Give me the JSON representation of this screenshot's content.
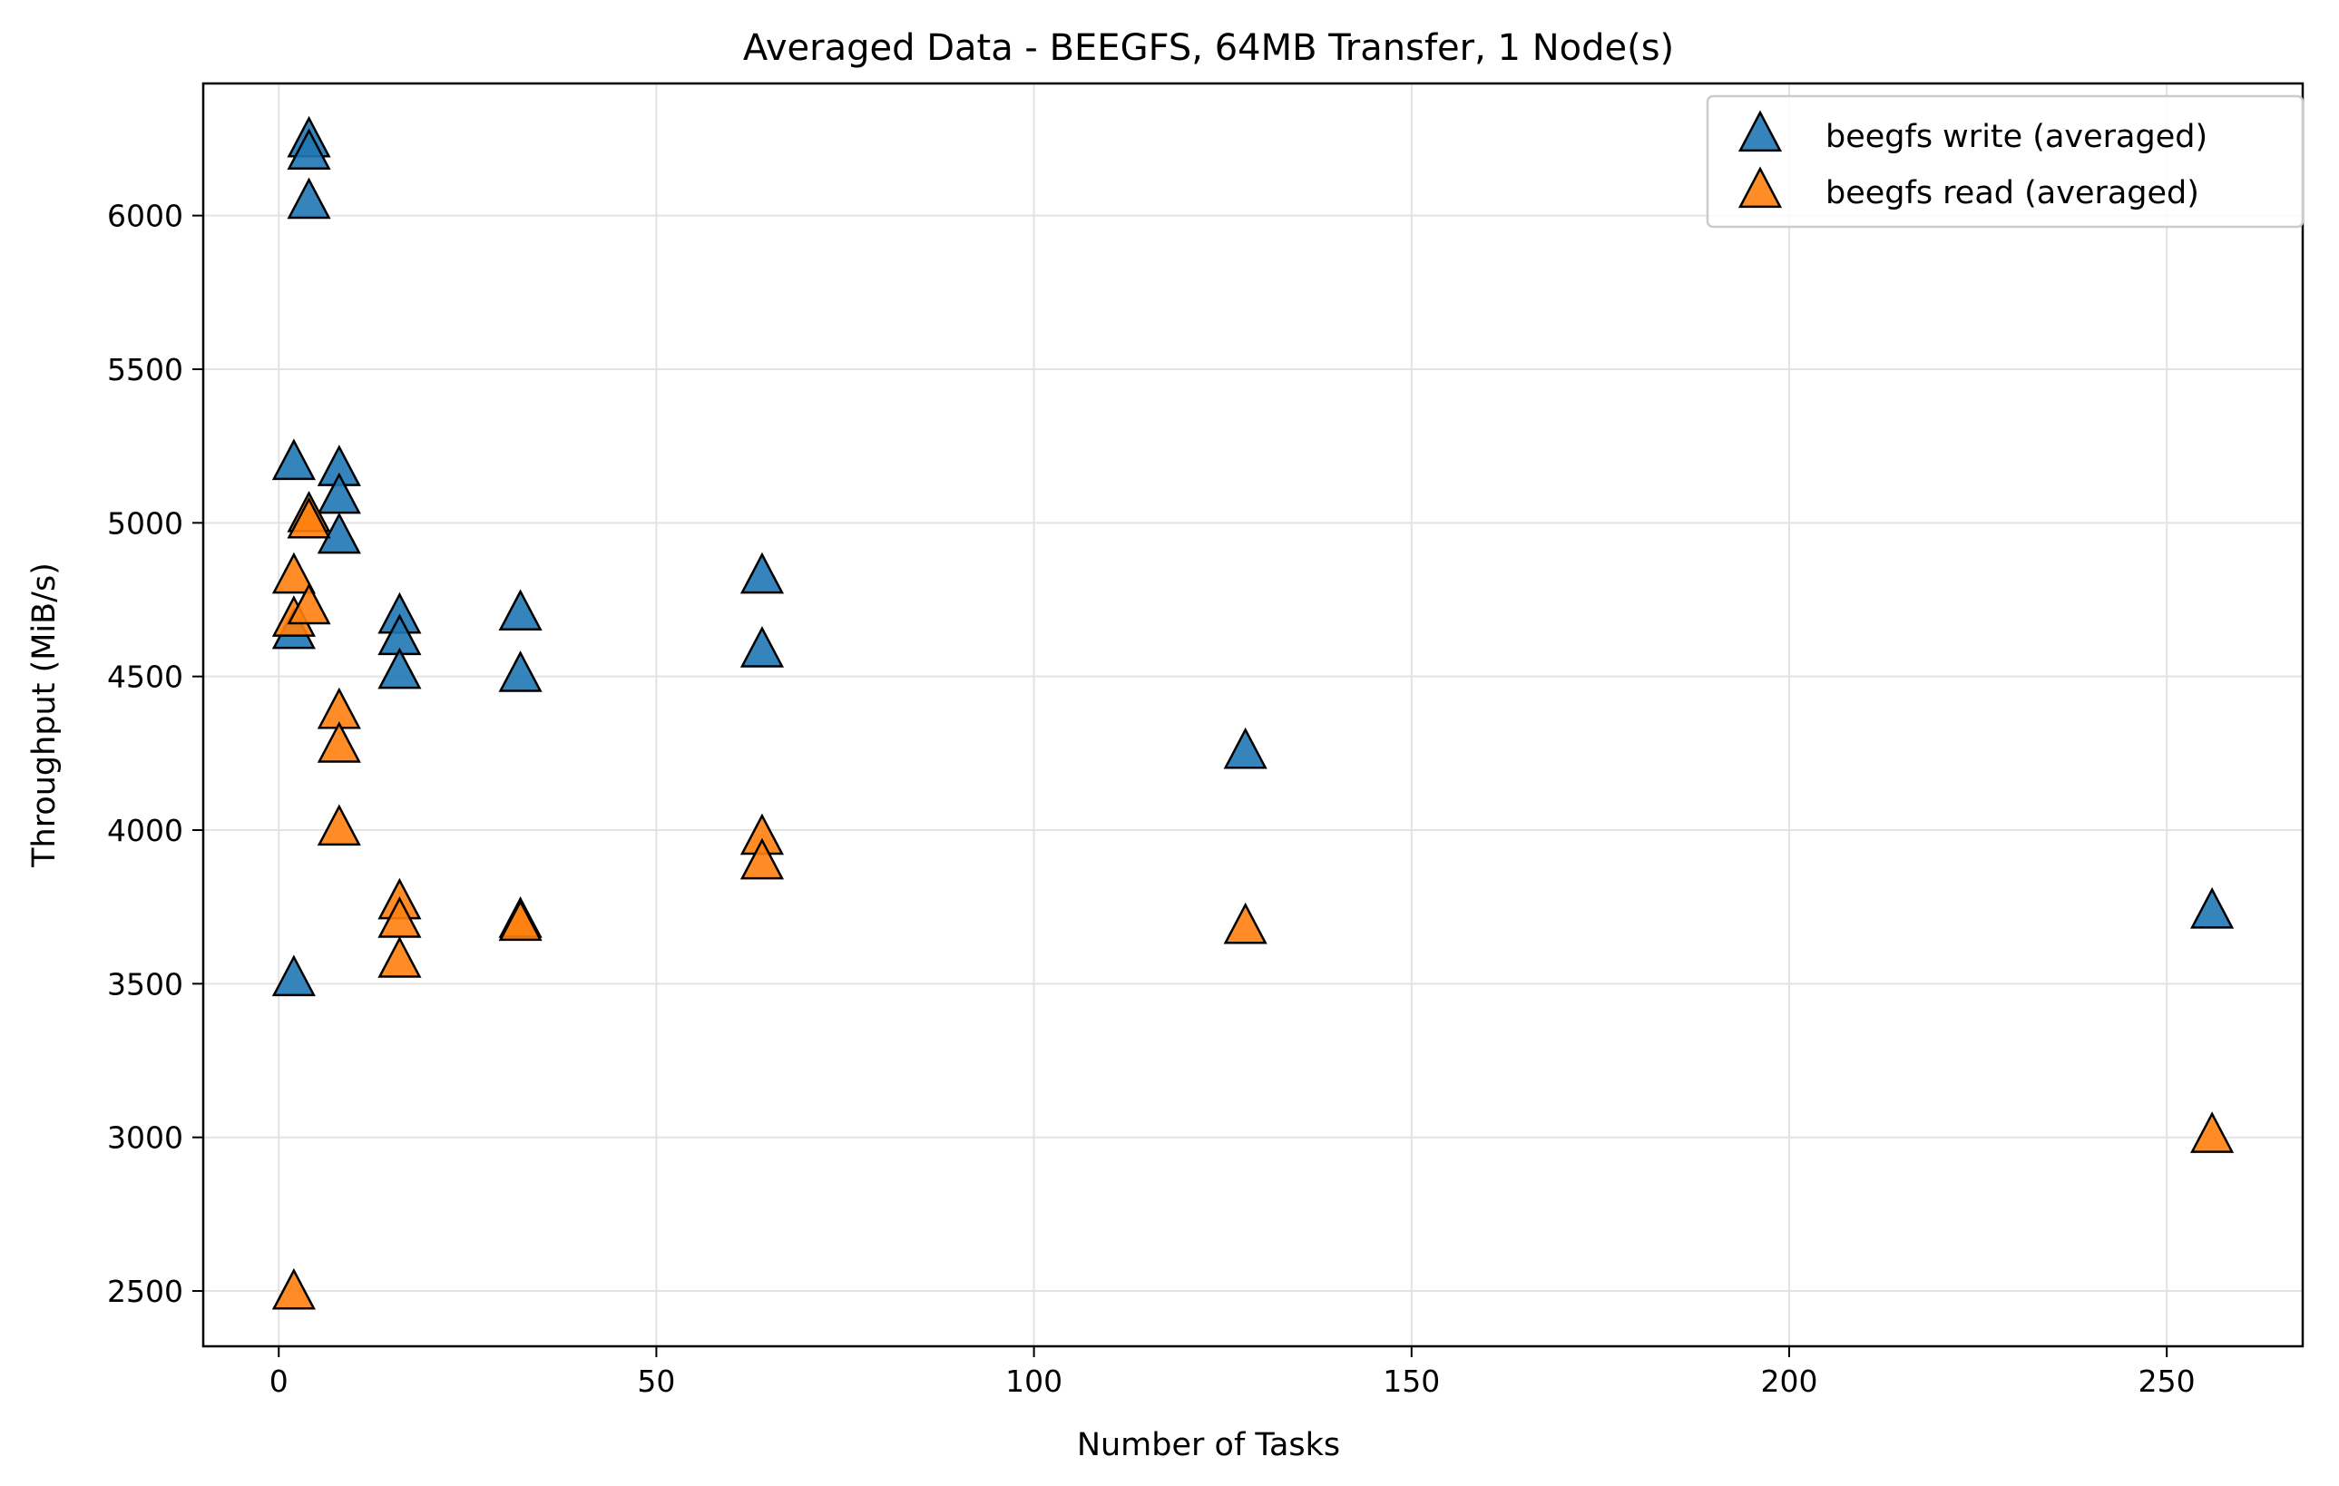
{
  "chart_data": {
    "type": "scatter",
    "title": "Averaged Data - BEEGFS, 64MB Transfer, 1 Node(s)",
    "xlabel": "Number of Tasks",
    "ylabel": "Throughput (MiB/s)",
    "xlim": [
      -10,
      268
    ],
    "ylim": [
      2320,
      6430
    ],
    "xticks": [
      0,
      50,
      100,
      150,
      200,
      250
    ],
    "yticks": [
      2500,
      3000,
      3500,
      4000,
      4500,
      5000,
      5500,
      6000
    ],
    "grid": true,
    "legend_position": "top-right",
    "marker": "triangle-up",
    "series": [
      {
        "name": "beegfs write (averaged)",
        "color": "#1f77b4",
        "points": [
          {
            "x": 2,
            "y": 5190
          },
          {
            "x": 2,
            "y": 4640
          },
          {
            "x": 2,
            "y": 3510
          },
          {
            "x": 4,
            "y": 6240
          },
          {
            "x": 4,
            "y": 6200
          },
          {
            "x": 4,
            "y": 6040
          },
          {
            "x": 8,
            "y": 5170
          },
          {
            "x": 8,
            "y": 5080
          },
          {
            "x": 8,
            "y": 4950
          },
          {
            "x": 16,
            "y": 4690
          },
          {
            "x": 16,
            "y": 4620
          },
          {
            "x": 16,
            "y": 4510
          },
          {
            "x": 32,
            "y": 4700
          },
          {
            "x": 32,
            "y": 4500
          },
          {
            "x": 64,
            "y": 4820
          },
          {
            "x": 64,
            "y": 4580
          },
          {
            "x": 128,
            "y": 4250
          },
          {
            "x": 256,
            "y": 3730
          }
        ]
      },
      {
        "name": "beegfs read (averaged)",
        "color": "#ff7f0e",
        "points": [
          {
            "x": 2,
            "y": 4820
          },
          {
            "x": 2,
            "y": 4680
          },
          {
            "x": 2,
            "y": 2490
          },
          {
            "x": 4,
            "y": 5020
          },
          {
            "x": 4,
            "y": 5000
          },
          {
            "x": 4,
            "y": 4720
          },
          {
            "x": 8,
            "y": 4380
          },
          {
            "x": 8,
            "y": 4270
          },
          {
            "x": 8,
            "y": 4000
          },
          {
            "x": 16,
            "y": 3760
          },
          {
            "x": 16,
            "y": 3700
          },
          {
            "x": 16,
            "y": 3570
          },
          {
            "x": 32,
            "y": 3700
          },
          {
            "x": 32,
            "y": 3690
          },
          {
            "x": 64,
            "y": 3970
          },
          {
            "x": 64,
            "y": 3890
          },
          {
            "x": 128,
            "y": 3680
          },
          {
            "x": 256,
            "y": 3000
          }
        ]
      }
    ]
  }
}
